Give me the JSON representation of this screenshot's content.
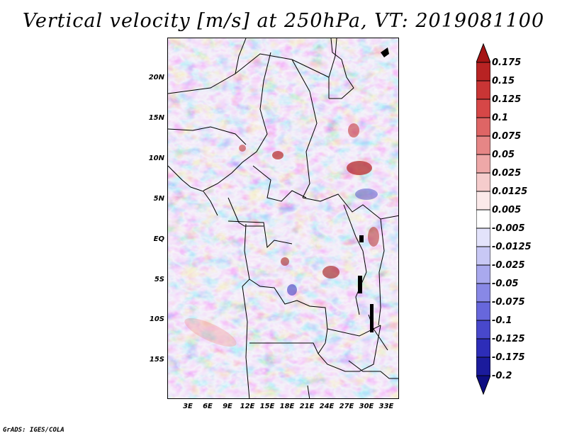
{
  "title": "Vertical velocity [m/s] at 250hPa, VT: 2019081100",
  "footer": "GrADS: IGES/COLA",
  "map": {
    "variable": "Vertical velocity",
    "units": "m/s",
    "level": "250hPa",
    "valid_time": "2019081100",
    "lat_labels": [
      "20N",
      "15N",
      "10N",
      "5N",
      "EQ",
      "5S",
      "10S",
      "15S"
    ],
    "lon_labels": [
      "3E",
      "6E",
      "9E",
      "12E",
      "15E",
      "18E",
      "21E",
      "24E",
      "27E",
      "30E",
      "33E"
    ]
  },
  "colorbar": {
    "labels": [
      "0.175",
      "0.15",
      "0.125",
      "0.1",
      "0.075",
      "0.05",
      "0.025",
      "0.0125",
      "0.005",
      "-0.005",
      "-0.0125",
      "-0.025",
      "-0.05",
      "-0.075",
      "-0.1",
      "-0.125",
      "-0.175",
      "-0.2"
    ],
    "colors": [
      "#a51515",
      "#b82323",
      "#c93535",
      "#d64747",
      "#de6565",
      "#e68686",
      "#eea8a8",
      "#f5cccc",
      "#fbe9e9",
      "#ffffff",
      "#e3e3fb",
      "#c8c8f5",
      "#a9a9ee",
      "#8888e6",
      "#6767dc",
      "#4848cc",
      "#2d2db8",
      "#1b1b9c",
      "#0e0e82"
    ]
  }
}
